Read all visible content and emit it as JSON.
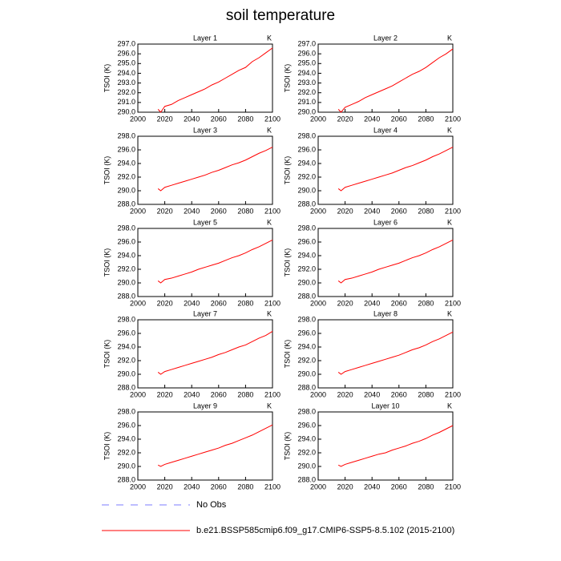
{
  "title": "soil temperature",
  "legend": [
    {
      "name": "No Obs",
      "color": "#7b7bff",
      "dash": true
    },
    {
      "name": "b.e21.BSSP585cmip6.f09_g17.CMIP6-SSP5-8.5.102 (2015-2100)",
      "color": "#ff0000",
      "dash": false
    }
  ],
  "chart_data": [
    {
      "type": "line",
      "title": "Layer 1",
      "ylabel": "TSOI  (K)",
      "units": "K",
      "xlim": [
        2000,
        2100
      ],
      "xticks": [
        2000,
        2020,
        2040,
        2060,
        2080,
        2100
      ],
      "ylim": [
        290,
        297
      ],
      "yticks": [
        {
          "value": 290,
          "label": "290.0"
        },
        {
          "value": 291,
          "label": "291.0"
        },
        {
          "value": 292,
          "label": "292.0"
        },
        {
          "value": 293,
          "label": "293.0"
        },
        {
          "value": 294,
          "label": "294.0"
        },
        {
          "value": 295,
          "label": "295.0"
        },
        {
          "value": 296,
          "label": "296.0"
        },
        {
          "value": 297,
          "label": "297.0"
        }
      ],
      "x": [
        2015,
        2017,
        2020,
        2025,
        2030,
        2035,
        2040,
        2045,
        2050,
        2055,
        2060,
        2065,
        2070,
        2075,
        2080,
        2085,
        2090,
        2095,
        2100
      ],
      "series": [
        {
          "color": "#ff0000",
          "values": [
            290.3,
            290.0,
            290.6,
            290.8,
            291.2,
            291.5,
            291.8,
            292.1,
            292.4,
            292.8,
            293.1,
            293.5,
            293.9,
            294.3,
            294.6,
            295.2,
            295.6,
            296.1,
            296.6
          ]
        }
      ]
    },
    {
      "type": "line",
      "title": "Layer 2",
      "ylabel": "TSOI  (K)",
      "units": "K",
      "xlim": [
        2000,
        2100
      ],
      "xticks": [
        2000,
        2020,
        2040,
        2060,
        2080,
        2100
      ],
      "ylim": [
        290,
        297
      ],
      "yticks": [
        {
          "value": 290,
          "label": "290.0"
        },
        {
          "value": 291,
          "label": "291.0"
        },
        {
          "value": 292,
          "label": "292.0"
        },
        {
          "value": 293,
          "label": "293.0"
        },
        {
          "value": 294,
          "label": "294.0"
        },
        {
          "value": 295,
          "label": "295.0"
        },
        {
          "value": 296,
          "label": "296.0"
        },
        {
          "value": 297,
          "label": "297.0"
        }
      ],
      "x": [
        2015,
        2017,
        2020,
        2025,
        2030,
        2035,
        2040,
        2045,
        2050,
        2055,
        2060,
        2065,
        2070,
        2075,
        2080,
        2085,
        2090,
        2095,
        2100
      ],
      "series": [
        {
          "color": "#ff0000",
          "values": [
            290.3,
            290.0,
            290.5,
            290.8,
            291.1,
            291.5,
            291.8,
            292.1,
            292.4,
            292.7,
            293.1,
            293.5,
            293.9,
            294.2,
            294.6,
            295.1,
            295.6,
            296.0,
            296.5
          ]
        }
      ]
    },
    {
      "type": "line",
      "title": "Layer 3",
      "ylabel": "TSOI  (K)",
      "units": "K",
      "xlim": [
        2000,
        2100
      ],
      "xticks": [
        2000,
        2020,
        2040,
        2060,
        2080,
        2100
      ],
      "ylim": [
        288,
        298
      ],
      "yticks": [
        {
          "value": 288,
          "label": "288.0"
        },
        {
          "value": 290,
          "label": "290.0"
        },
        {
          "value": 292,
          "label": "292.0"
        },
        {
          "value": 294,
          "label": "294.0"
        },
        {
          "value": 296,
          "label": "296.0"
        },
        {
          "value": 298,
          "label": "298.0"
        }
      ],
      "x": [
        2015,
        2017,
        2020,
        2025,
        2030,
        2035,
        2040,
        2045,
        2050,
        2055,
        2060,
        2065,
        2070,
        2075,
        2080,
        2085,
        2090,
        2095,
        2100
      ],
      "series": [
        {
          "color": "#ff0000",
          "values": [
            290.3,
            290.0,
            290.5,
            290.8,
            291.1,
            291.4,
            291.7,
            292.0,
            292.3,
            292.7,
            293.0,
            293.4,
            293.8,
            294.1,
            294.5,
            295.0,
            295.5,
            295.9,
            296.4
          ]
        }
      ]
    },
    {
      "type": "line",
      "title": "Layer 4",
      "ylabel": "TSOI  (K)",
      "units": "K",
      "xlim": [
        2000,
        2100
      ],
      "xticks": [
        2000,
        2020,
        2040,
        2060,
        2080,
        2100
      ],
      "ylim": [
        288,
        298
      ],
      "yticks": [
        {
          "value": 288,
          "label": "288.0"
        },
        {
          "value": 290,
          "label": "290.0"
        },
        {
          "value": 292,
          "label": "292.0"
        },
        {
          "value": 294,
          "label": "294.0"
        },
        {
          "value": 296,
          "label": "296.0"
        },
        {
          "value": 298,
          "label": "298.0"
        }
      ],
      "x": [
        2015,
        2017,
        2020,
        2025,
        2030,
        2035,
        2040,
        2045,
        2050,
        2055,
        2060,
        2065,
        2070,
        2075,
        2080,
        2085,
        2090,
        2095,
        2100
      ],
      "series": [
        {
          "color": "#ff0000",
          "values": [
            290.3,
            290.0,
            290.5,
            290.8,
            291.1,
            291.4,
            291.7,
            292.0,
            292.3,
            292.6,
            293.0,
            293.4,
            293.7,
            294.1,
            294.5,
            295.0,
            295.4,
            295.9,
            296.4
          ]
        }
      ]
    },
    {
      "type": "line",
      "title": "Layer 5",
      "ylabel": "TSOI  (K)",
      "units": "K",
      "xlim": [
        2000,
        2100
      ],
      "xticks": [
        2000,
        2020,
        2040,
        2060,
        2080,
        2100
      ],
      "ylim": [
        288,
        298
      ],
      "yticks": [
        {
          "value": 288,
          "label": "288.0"
        },
        {
          "value": 290,
          "label": "290.0"
        },
        {
          "value": 292,
          "label": "292.0"
        },
        {
          "value": 294,
          "label": "294.0"
        },
        {
          "value": 296,
          "label": "296.0"
        },
        {
          "value": 298,
          "label": "298.0"
        }
      ],
      "x": [
        2015,
        2017,
        2020,
        2025,
        2030,
        2035,
        2040,
        2045,
        2050,
        2055,
        2060,
        2065,
        2070,
        2075,
        2080,
        2085,
        2090,
        2095,
        2100
      ],
      "series": [
        {
          "color": "#ff0000",
          "values": [
            290.3,
            290.0,
            290.5,
            290.7,
            291.0,
            291.3,
            291.6,
            292.0,
            292.3,
            292.6,
            292.9,
            293.3,
            293.7,
            294.0,
            294.4,
            294.9,
            295.3,
            295.8,
            296.3
          ]
        }
      ]
    },
    {
      "type": "line",
      "title": "Layer 6",
      "ylabel": "TSOI  (K)",
      "units": "K",
      "xlim": [
        2000,
        2100
      ],
      "xticks": [
        2000,
        2020,
        2040,
        2060,
        2080,
        2100
      ],
      "ylim": [
        288,
        298
      ],
      "yticks": [
        {
          "value": 288,
          "label": "288.0"
        },
        {
          "value": 290,
          "label": "290.0"
        },
        {
          "value": 292,
          "label": "292.0"
        },
        {
          "value": 294,
          "label": "294.0"
        },
        {
          "value": 296,
          "label": "296.0"
        },
        {
          "value": 298,
          "label": "298.0"
        }
      ],
      "x": [
        2015,
        2017,
        2020,
        2025,
        2030,
        2035,
        2040,
        2045,
        2050,
        2055,
        2060,
        2065,
        2070,
        2075,
        2080,
        2085,
        2090,
        2095,
        2100
      ],
      "series": [
        {
          "color": "#ff0000",
          "values": [
            290.3,
            290.0,
            290.5,
            290.7,
            291.0,
            291.3,
            291.6,
            292.0,
            292.3,
            292.6,
            292.9,
            293.3,
            293.7,
            294.0,
            294.4,
            294.9,
            295.3,
            295.8,
            296.3
          ]
        }
      ]
    },
    {
      "type": "line",
      "title": "Layer 7",
      "ylabel": "TSOI  (K)",
      "units": "K",
      "xlim": [
        2000,
        2100
      ],
      "xticks": [
        2000,
        2020,
        2040,
        2060,
        2080,
        2100
      ],
      "ylim": [
        288,
        298
      ],
      "yticks": [
        {
          "value": 288,
          "label": "288.0"
        },
        {
          "value": 290,
          "label": "290.0"
        },
        {
          "value": 292,
          "label": "292.0"
        },
        {
          "value": 294,
          "label": "294.0"
        },
        {
          "value": 296,
          "label": "296.0"
        },
        {
          "value": 298,
          "label": "298.0"
        }
      ],
      "x": [
        2015,
        2017,
        2020,
        2025,
        2030,
        2035,
        2040,
        2045,
        2050,
        2055,
        2060,
        2065,
        2070,
        2075,
        2080,
        2085,
        2090,
        2095,
        2100
      ],
      "series": [
        {
          "color": "#ff0000",
          "values": [
            290.3,
            290.0,
            290.4,
            290.7,
            291.0,
            291.3,
            291.6,
            291.9,
            292.2,
            292.5,
            292.9,
            293.2,
            293.6,
            294.0,
            294.3,
            294.8,
            295.3,
            295.7,
            296.3
          ]
        }
      ]
    },
    {
      "type": "line",
      "title": "Layer 8",
      "ylabel": "TSOI  (K)",
      "units": "K",
      "xlim": [
        2000,
        2100
      ],
      "xticks": [
        2000,
        2020,
        2040,
        2060,
        2080,
        2100
      ],
      "ylim": [
        288,
        298
      ],
      "yticks": [
        {
          "value": 288,
          "label": "288.0"
        },
        {
          "value": 290,
          "label": "290.0"
        },
        {
          "value": 292,
          "label": "292.0"
        },
        {
          "value": 294,
          "label": "294.0"
        },
        {
          "value": 296,
          "label": "296.0"
        },
        {
          "value": 298,
          "label": "298.0"
        }
      ],
      "x": [
        2015,
        2017,
        2020,
        2025,
        2030,
        2035,
        2040,
        2045,
        2050,
        2055,
        2060,
        2065,
        2070,
        2075,
        2080,
        2085,
        2090,
        2095,
        2100
      ],
      "series": [
        {
          "color": "#ff0000",
          "values": [
            290.3,
            290.0,
            290.4,
            290.7,
            291.0,
            291.3,
            291.6,
            291.9,
            292.2,
            292.5,
            292.8,
            293.2,
            293.6,
            293.9,
            294.3,
            294.8,
            295.2,
            295.7,
            296.2
          ]
        }
      ]
    },
    {
      "type": "line",
      "title": "Layer 9",
      "ylabel": "TSOI  (K)",
      "units": "K",
      "xlim": [
        2000,
        2100
      ],
      "xticks": [
        2000,
        2020,
        2040,
        2060,
        2080,
        2100
      ],
      "ylim": [
        288,
        298
      ],
      "yticks": [
        {
          "value": 288,
          "label": "288.0"
        },
        {
          "value": 290,
          "label": "290.0"
        },
        {
          "value": 292,
          "label": "292.0"
        },
        {
          "value": 294,
          "label": "294.0"
        },
        {
          "value": 296,
          "label": "296.0"
        },
        {
          "value": 298,
          "label": "298.0"
        }
      ],
      "x": [
        2015,
        2017,
        2020,
        2025,
        2030,
        2035,
        2040,
        2045,
        2050,
        2055,
        2060,
        2065,
        2070,
        2075,
        2080,
        2085,
        2090,
        2095,
        2100
      ],
      "series": [
        {
          "color": "#ff0000",
          "values": [
            290.2,
            290.0,
            290.3,
            290.6,
            290.9,
            291.2,
            291.5,
            291.8,
            292.1,
            292.4,
            292.7,
            293.1,
            293.4,
            293.8,
            294.2,
            294.6,
            295.1,
            295.6,
            296.1
          ]
        }
      ]
    },
    {
      "type": "line",
      "title": "Layer 10",
      "ylabel": "TSOI  (K)",
      "units": "K",
      "xlim": [
        2000,
        2100
      ],
      "xticks": [
        2000,
        2020,
        2040,
        2060,
        2080,
        2100
      ],
      "ylim": [
        288,
        298
      ],
      "yticks": [
        {
          "value": 288,
          "label": "288.0"
        },
        {
          "value": 290,
          "label": "290.0"
        },
        {
          "value": 292,
          "label": "292.0"
        },
        {
          "value": 294,
          "label": "294.0"
        },
        {
          "value": 296,
          "label": "296.0"
        },
        {
          "value": 298,
          "label": "298.0"
        }
      ],
      "x": [
        2015,
        2017,
        2020,
        2025,
        2030,
        2035,
        2040,
        2045,
        2050,
        2055,
        2060,
        2065,
        2070,
        2075,
        2080,
        2085,
        2090,
        2095,
        2100
      ],
      "series": [
        {
          "color": "#ff0000",
          "values": [
            290.2,
            290.0,
            290.3,
            290.6,
            290.9,
            291.2,
            291.5,
            291.8,
            292.0,
            292.4,
            292.7,
            293.0,
            293.4,
            293.7,
            294.1,
            294.6,
            295.0,
            295.5,
            296.0
          ]
        }
      ]
    }
  ]
}
